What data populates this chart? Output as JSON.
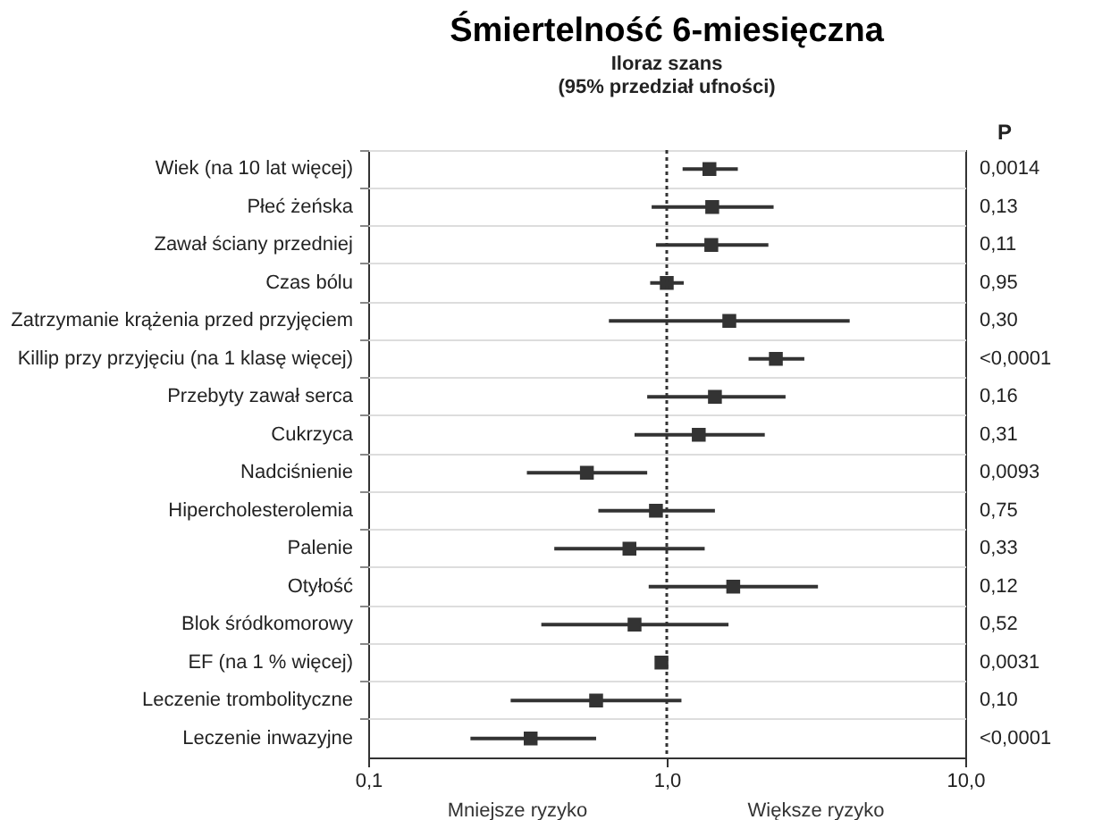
{
  "chart_data": {
    "type": "scatter",
    "orientation": "horizontal",
    "title": "Śmiertelność 6-miesięczna",
    "subtitle": [
      "Iloraz szans",
      "(95% przedział ufności)"
    ],
    "y2label": "P",
    "categories": [
      "Wiek (na 10 lat więcej)",
      "Płeć żeńska",
      "Zawał ściany przedniej",
      "Czas bólu",
      "Zatrzymanie krążenia przed przyjęciem",
      "Killip przy przyjęciu (na 1 klasę więcej)",
      "Przebyty zawał serca",
      "Cukrzyca",
      "Nadciśnienie",
      "Hipercholesterolemia",
      "Palenie",
      "Otyłość",
      "Blok śródkomorowy",
      "EF (na 1 % więcej)",
      "Leczenie trombolityczne",
      "Leczenie inwazyjne"
    ],
    "y2_categories": [
      "0,0014",
      "0,13",
      "0,11",
      "0,95",
      "0,30",
      "<0,0001",
      "0,16",
      "0,31",
      "0,0093",
      "0,75",
      "0,33",
      "0,12",
      "0,52",
      "0,0031",
      "0,10",
      "<0,0001"
    ],
    "values": [
      1.39,
      1.42,
      1.41,
      1.0,
      1.62,
      2.32,
      1.45,
      1.28,
      0.54,
      0.92,
      0.75,
      1.67,
      0.78,
      0.96,
      0.58,
      0.35
    ],
    "errors": [
      [
        1.13,
        1.73
      ],
      [
        0.89,
        2.28
      ],
      [
        0.92,
        2.19
      ],
      [
        0.88,
        1.14
      ],
      [
        0.64,
        4.1
      ],
      [
        1.88,
        2.89
      ],
      [
        0.86,
        2.5
      ],
      [
        0.78,
        2.13
      ],
      [
        0.34,
        0.86
      ],
      [
        0.59,
        1.45
      ],
      [
        0.42,
        1.34
      ],
      [
        0.87,
        3.21
      ],
      [
        0.38,
        1.61
      ],
      null,
      [
        0.3,
        1.12
      ],
      [
        0.22,
        0.58
      ]
    ],
    "color": "#333333",
    "marker": "square",
    "log": "x",
    "xlim": [
      0.1,
      10
    ],
    "xticks": [
      {
        "value": 0.1,
        "label": "0,1"
      },
      {
        "value": 1,
        "label": "1,0"
      },
      {
        "value": 10,
        "label": "10,0"
      }
    ],
    "ref_lines": [
      {
        "axis": "x",
        "value": 1,
        "line_style": "dotted",
        "color": "#333333"
      }
    ],
    "grid": "y",
    "annotations": [
      "Mniejsze ryzyko",
      "Większe ryzyko"
    ]
  }
}
